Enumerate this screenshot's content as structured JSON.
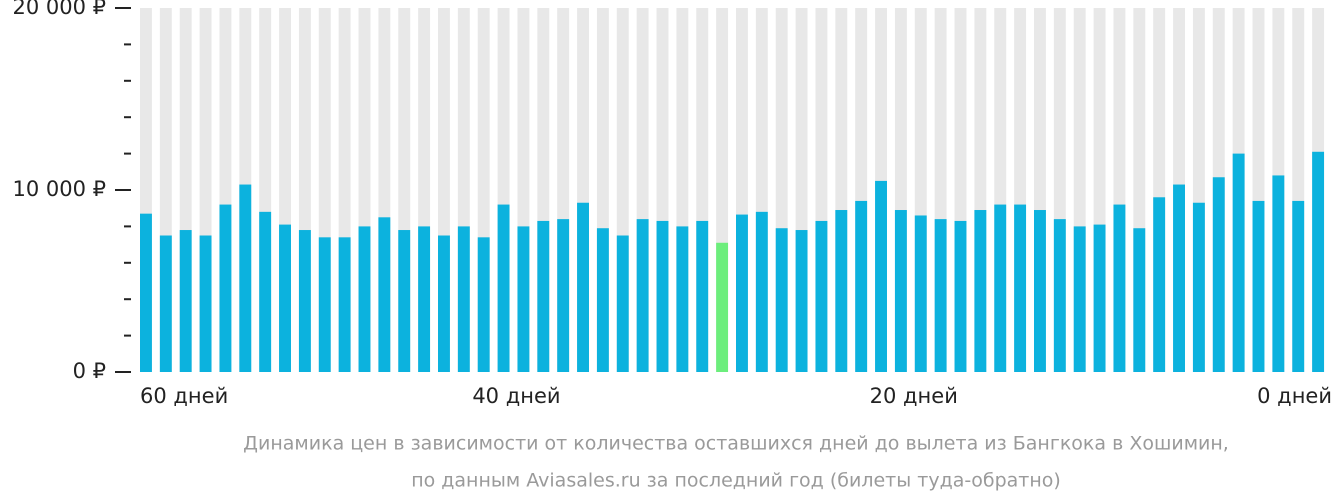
{
  "chart_data": {
    "type": "bar",
    "caption": [
      "Динамика цен в зависимости от количества оставшихся дней до вылета из Бангкока в Хошимин,",
      "по данным Aviasales.ru за последний год (билеты туда-обратно)"
    ],
    "categories": [
      "60 дней",
      null,
      null,
      null,
      null,
      null,
      null,
      null,
      null,
      null,
      null,
      null,
      null,
      null,
      null,
      null,
      null,
      null,
      null,
      "40 дней",
      null,
      null,
      null,
      null,
      null,
      null,
      null,
      null,
      null,
      null,
      null,
      null,
      null,
      null,
      null,
      null,
      null,
      null,
      null,
      "20 дней",
      null,
      null,
      null,
      null,
      null,
      null,
      null,
      null,
      null,
      null,
      null,
      null,
      null,
      null,
      null,
      null,
      null,
      null,
      null,
      "0 дней"
    ],
    "values": [
      8700,
      7500,
      7800,
      7500,
      9200,
      10300,
      8800,
      8100,
      7800,
      7400,
      7400,
      8000,
      8500,
      7800,
      8000,
      7500,
      8000,
      7400,
      9200,
      8000,
      8300,
      8400,
      9300,
      7900,
      7500,
      8400,
      8300,
      8000,
      8300,
      7100,
      8650,
      8800,
      7900,
      7800,
      8300,
      8900,
      9400,
      10500,
      8900,
      8600,
      8400,
      8300,
      8900,
      9200,
      9200,
      8900,
      8400,
      8000,
      8100,
      9200,
      7900,
      9600,
      10300,
      9300,
      10700,
      12000,
      9400,
      10800,
      9400,
      12100
    ],
    "color": "#0cb2de",
    "min_color": "#6cee7c",
    "background_color": "#e8e8e8",
    "ylim": [
      0,
      20000
    ],
    "yticks": [
      {
        "value": 0,
        "label": "0 ₽"
      },
      {
        "value": 10000,
        "label": "10 000 ₽"
      },
      {
        "value": 20000,
        "label": "20 000 ₽"
      }
    ],
    "yminorticks": [
      2000,
      4000,
      6000,
      8000,
      12000,
      14000,
      16000,
      18000
    ]
  }
}
